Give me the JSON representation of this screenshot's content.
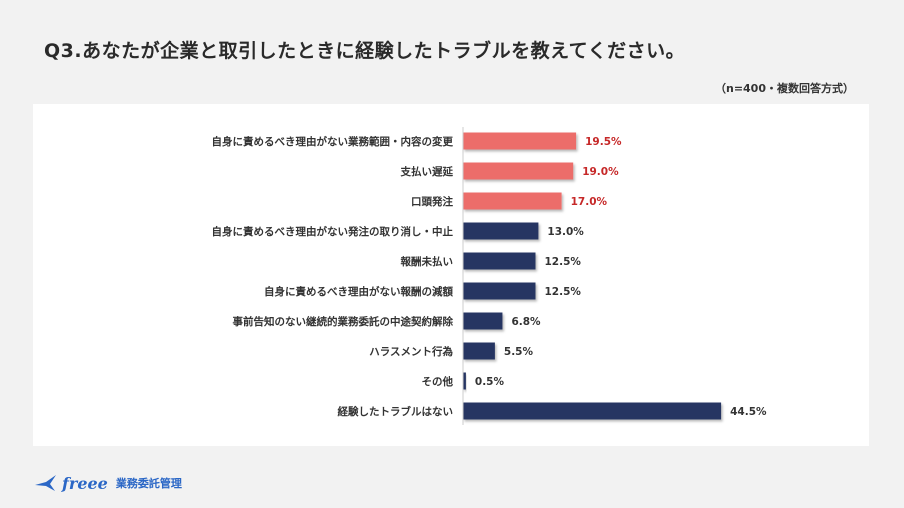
{
  "page": {
    "title": "Q3.あなたが企業と取引したときに経験したトラブルを教えてください。",
    "note": "（n=400・複数回答方式）"
  },
  "brand": {
    "logo_icon": "bird-icon",
    "logo_text": "freee",
    "product": "業務委託管理"
  },
  "colors": {
    "highlight": "#ec6d6a",
    "highlight_label": "#c62828",
    "normal": "#253462",
    "normal_label": "#333333"
  },
  "chart_data": {
    "type": "bar",
    "orientation": "horizontal",
    "title": "",
    "xlabel": "",
    "ylabel": "",
    "xlim": [
      0,
      50
    ],
    "grid": false,
    "legend": "none",
    "value_suffix": "%",
    "categories": [
      "自身に責めるべき理由がない業務範囲・内容の変更",
      "支払い遅延",
      "口頭発注",
      "自身に責めるべき理由がない発注の取り消し・中止",
      "報酬未払い",
      "自身に責めるべき理由がない報酬の減額",
      "事前告知のない継続的業務委託の中途契約解除",
      "ハラスメント行為",
      "その他",
      "経験したトラブルはない"
    ],
    "values": [
      19.5,
      19.0,
      17.0,
      13.0,
      12.5,
      12.5,
      6.8,
      5.5,
      0.5,
      44.5
    ],
    "value_labels": [
      "19.5%",
      "19.0%",
      "17.0%",
      "13.0%",
      "12.5%",
      "12.5%",
      "6.8%",
      "5.5%",
      "0.5%",
      "44.5%"
    ],
    "highlighted": [
      true,
      true,
      true,
      false,
      false,
      false,
      false,
      false,
      false,
      false
    ]
  }
}
